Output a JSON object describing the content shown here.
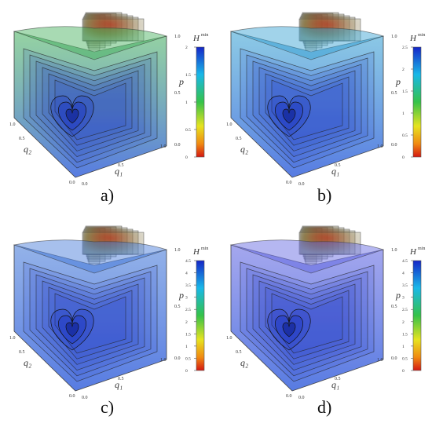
{
  "panels": [
    {
      "caption": "a)",
      "colorbar": {
        "title_main": "H",
        "title_sup": "min",
        "ticks": [
          "2",
          "1.5",
          "1",
          "0.5",
          "0"
        ]
      },
      "axes": {
        "q1": "q₁",
        "q2": "q₂",
        "p": "p",
        "tick_min": "0.0",
        "tick_mid": "0.5",
        "tick_max": "1.0"
      },
      "surface_tint": "#3fae57"
    },
    {
      "caption": "b)",
      "colorbar": {
        "title_main": "H",
        "title_sup": "min",
        "ticks": [
          "2.5",
          "2",
          "1.5",
          "1",
          "0.5",
          "0"
        ]
      },
      "axes": {
        "q1": "q₁",
        "q2": "q₂",
        "p": "p",
        "tick_min": "0.0",
        "tick_mid": "0.5",
        "tick_max": "1.0"
      },
      "surface_tint": "#2f9ed0"
    },
    {
      "caption": "c)",
      "colorbar": {
        "title_main": "H",
        "title_sup": "min",
        "ticks": [
          "4.5",
          "4",
          "3.5",
          "3",
          "2.5",
          "2",
          "1.5",
          "1",
          "0.5",
          "0"
        ]
      },
      "axes": {
        "q1": "q₁",
        "q2": "q₂",
        "p": "p",
        "tick_min": "0.0",
        "tick_mid": "0.5",
        "tick_max": "1.0"
      },
      "surface_tint": "#3b73d6"
    },
    {
      "caption": "d)",
      "colorbar": {
        "title_main": "H",
        "title_sup": "min",
        "ticks": [
          "4.5",
          "4",
          "3.5",
          "3",
          "2.5",
          "2",
          "1.5",
          "1",
          "0.5",
          "0"
        ]
      },
      "axes": {
        "q1": "q₁",
        "q2": "q₂",
        "p": "p",
        "tick_min": "0.0",
        "tick_mid": "0.5",
        "tick_max": "1.0"
      },
      "surface_tint": "#5a5fe0"
    }
  ]
}
